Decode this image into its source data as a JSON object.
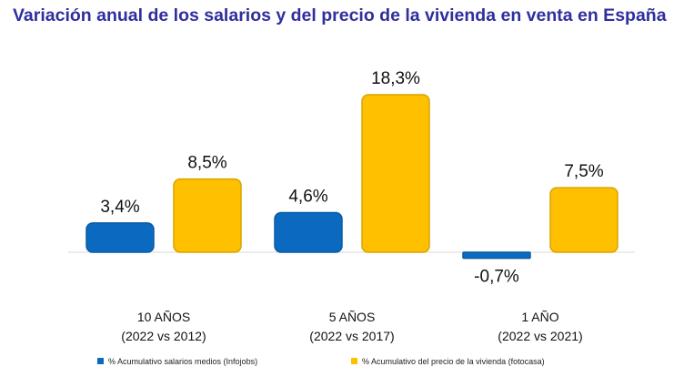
{
  "chart_data": {
    "type": "bar",
    "title": "Variación anual de los salarios y del precio de la vivienda en venta en España",
    "categories": [
      {
        "line1": "10 AÑOS",
        "line2": "(2022 vs 2012)"
      },
      {
        "line1": "5 AÑOS",
        "line2": "(2022 vs 2017)"
      },
      {
        "line1": "1 AÑO",
        "line2": "(2022 vs 2021)"
      }
    ],
    "series": [
      {
        "name": "% Acumulativo salarios medios (Infojobs)",
        "color": "#0b6ac0",
        "values": [
          3.4,
          4.6,
          -0.7
        ],
        "labels": [
          "3,4%",
          "4,6%",
          "-0,7%"
        ]
      },
      {
        "name": "% Acumulativo del precio de la vivienda (fotocasa)",
        "color": "#ffc000",
        "values": [
          8.5,
          18.3,
          7.5
        ],
        "labels": [
          "8,5%",
          "18,3%",
          "7,5%"
        ]
      }
    ],
    "ylim": [
      -1,
      19
    ],
    "grid": false,
    "legend": "bottom"
  }
}
